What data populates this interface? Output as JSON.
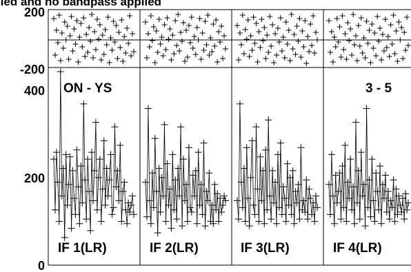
{
  "chart_data": {
    "type": "scatter",
    "title": "lied and no bandpass applied",
    "top_panel": {
      "y_ticks": [
        "200",
        "-200"
      ],
      "ylim": [
        -200,
        200
      ]
    },
    "bottom_panel": {
      "y_ticks": [
        "400",
        "200",
        "0"
      ],
      "ylim": [
        0,
        420
      ],
      "source_label": "ON - YS",
      "baseline_label": "3 - 5"
    },
    "series": [
      {
        "name": "IF 1(LR)",
        "amplitude": [
          230,
          120,
          245,
          180,
          95,
          420,
          150,
          210,
          60,
          240,
          130,
          175,
          235,
          80,
          205,
          145,
          110,
          250,
          170,
          90,
          215,
          135,
          350,
          185,
          100,
          230,
          160,
          75,
          245,
          140,
          205,
          310,
          120,
          190,
          230,
          95,
          165,
          270,
          130,
          210,
          150,
          185,
          240,
          110,
          125,
          300,
          170,
          205,
          140,
          260,
          95,
          160,
          180,
          120,
          90,
          135,
          115,
          130,
          150,
          110
        ],
        "phase": [
          145,
          -120,
          60,
          -30,
          170,
          -160,
          40,
          -70,
          120,
          -10,
          90,
          -150,
          20,
          160,
          -90,
          70,
          -40,
          130,
          -170,
          10,
          110,
          -60,
          150,
          -130,
          30,
          -100,
          80,
          -20,
          175,
          -140,
          50,
          -80,
          140,
          -5,
          100,
          -155,
          25,
          -115,
          65,
          -45,
          155,
          -175,
          5,
          -85,
          125,
          -25,
          95,
          -145,
          45,
          -65,
          135,
          -165,
          15,
          -105,
          75,
          -35,
          165,
          -125,
          35,
          -95
        ]
      },
      {
        "name": "IF 2(LR)",
        "amplitude": [
          180,
          105,
          340,
          140,
          90,
          200,
          125,
          275,
          160,
          70,
          210,
          115,
          190,
          150,
          305,
          95,
          220,
          130,
          165,
          80,
          240,
          120,
          185,
          100,
          210,
          150,
          300,
          85,
          230,
          140,
          175,
          95,
          255,
          125,
          115,
          195,
          150,
          205,
          90,
          245,
          130,
          175,
          110,
          265,
          85,
          160,
          140,
          200,
          95,
          130,
          90,
          175,
          120,
          155,
          95,
          145,
          115,
          130,
          150,
          140
        ],
        "phase": [
          120,
          -140,
          35,
          -60,
          165,
          -15,
          85,
          -175,
          55,
          -100,
          140,
          -40,
          10,
          -125,
          100,
          -80,
          150,
          -5,
          70,
          -155,
          25,
          -110,
          130,
          -50,
          175,
          -90,
          45,
          -20,
          115,
          -165,
          60,
          -135,
          95,
          -30,
          155,
          -70,
          15,
          -115,
          80,
          -10,
          145,
          -150,
          40,
          -85,
          125,
          -45,
          170,
          -120,
          5,
          -95,
          105,
          -55,
          135,
          -170,
          50,
          -25,
          90,
          -145,
          20,
          -75
        ]
      },
      {
        "name": "IF 3(LR)",
        "amplitude": [
          140,
          100,
          350,
          180,
          125,
          210,
          95,
          255,
          145,
          85,
          190,
          270,
          130,
          110,
          300,
          165,
          95,
          235,
          140,
          205,
          90,
          250,
          120,
          315,
          150,
          100,
          205,
          135,
          180,
          90,
          240,
          125,
          265,
          110,
          170,
          145,
          95,
          220,
          130,
          190,
          110,
          205,
          90,
          160,
          135,
          175,
          100,
          255,
          120,
          140,
          115,
          185,
          100,
          165,
          145,
          110,
          135,
          95,
          150,
          125
        ],
        "phase": [
          95,
          -155,
          40,
          -45,
          170,
          -110,
          65,
          -5,
          135,
          -130,
          20,
          -85,
          155,
          -35,
          110,
          -170,
          50,
          -65,
          140,
          -15,
          80,
          -145,
          25,
          -100,
          160,
          -55,
          100,
          -175,
          35,
          -120,
          75,
          -25,
          150,
          -90,
          10,
          -140,
          120,
          -40,
          60,
          -160,
          175,
          -75,
          30,
          -115,
          90,
          -20,
          145,
          -135,
          55,
          -60,
          130,
          -180,
          15,
          -95,
          105,
          -50,
          165,
          -105,
          45,
          -10
        ]
      },
      {
        "name": "IF 4(LR)",
        "amplitude": [
          175,
          110,
          240,
          150,
          90,
          195,
          135,
          160,
          200,
          100,
          215,
          125,
          260,
          95,
          180,
          145,
          230,
          120,
          170,
          90,
          310,
          135,
          205,
          100,
          245,
          150,
          175,
          85,
          340,
          125,
          185,
          105,
          230,
          140,
          95,
          200,
          160,
          120,
          215,
          90,
          175,
          145,
          195,
          115,
          160,
          100,
          140,
          125,
          185,
          95,
          165,
          110,
          150,
          130,
          115,
          145,
          100,
          155,
          120,
          135
        ],
        "phase": [
          130,
          -100,
          50,
          -170,
          10,
          -60,
          145,
          -25,
          85,
          -135,
          165,
          -80,
          35,
          -150,
          115,
          -15,
          70,
          -120,
          175,
          -45,
          20,
          -160,
          95,
          -55,
          150,
          -105,
          5,
          -140,
          125,
          -35,
          60,
          -175,
          105,
          -70,
          40,
          -125,
          160,
          -20,
          75,
          -155,
          30,
          -90,
          140,
          -65,
          15,
          -130,
          100,
          -40,
          170,
          -110,
          55,
          -165,
          120,
          -10,
          80,
          -145,
          45,
          -85,
          155,
          -50
        ]
      }
    ]
  }
}
